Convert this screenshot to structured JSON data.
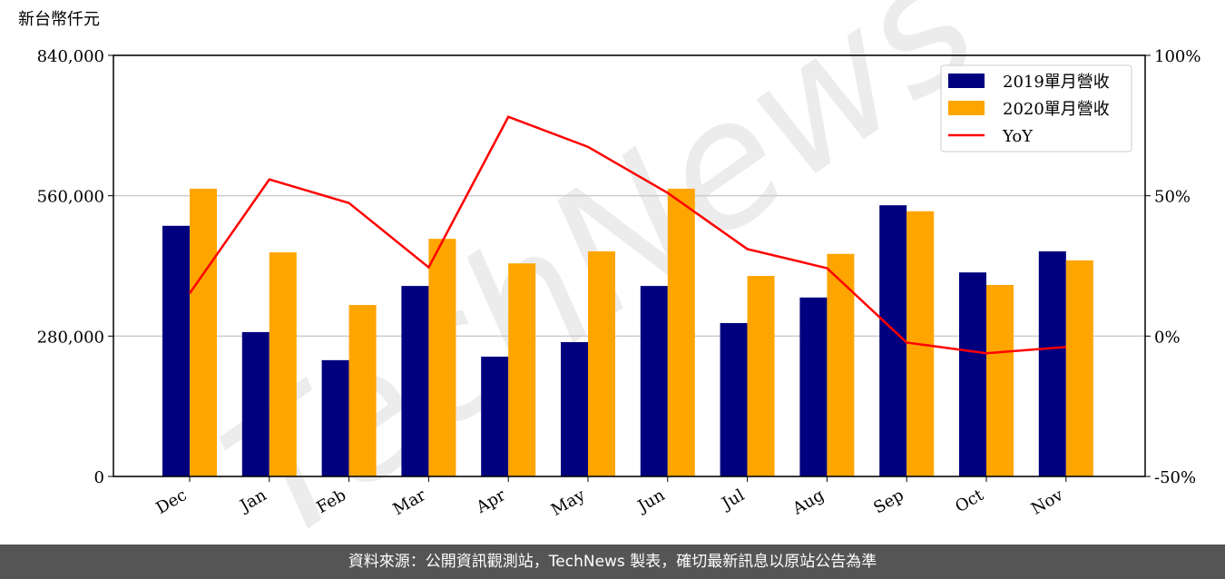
{
  "chart_data": {
    "type": "bar",
    "unit_label": "新台幣仟元",
    "watermark": "TechNews",
    "categories": [
      "Dec",
      "Jan",
      "Feb",
      "Mar",
      "Apr",
      "May",
      "Jun",
      "Jul",
      "Aug",
      "Sep",
      "Oct",
      "Nov"
    ],
    "series": [
      {
        "name": "2019單月營收",
        "type": "bar",
        "color": "#00007f",
        "values": [
          500000,
          288000,
          232000,
          380000,
          239000,
          268000,
          380000,
          306000,
          357000,
          541000,
          407000,
          449000
        ]
      },
      {
        "name": "2020單月營收",
        "type": "bar",
        "color": "#ffa500",
        "values": [
          574000,
          447000,
          342000,
          474000,
          425000,
          449000,
          574000,
          400000,
          444000,
          529000,
          382000,
          431000
        ]
      },
      {
        "name": "YoY",
        "type": "line",
        "axis": "y2",
        "color": "#ff0000",
        "values": [
          15.2,
          55.8,
          47.4,
          24.5,
          78.1,
          67.4,
          51.0,
          31.0,
          24.2,
          -2.3,
          -6.1,
          -3.9
        ]
      }
    ],
    "ylim": [
      0,
      840000
    ],
    "yticks": [
      {
        "value": 0,
        "label": "0"
      },
      {
        "value": 280000,
        "label": "280,000"
      },
      {
        "value": 560000,
        "label": "560,000"
      },
      {
        "value": 840000,
        "label": "840,000"
      }
    ],
    "y2lim": [
      -50,
      100
    ],
    "y2ticks": [
      {
        "value": -50,
        "label": "-50%"
      },
      {
        "value": 0,
        "label": "0%"
      },
      {
        "value": 50,
        "label": "50%"
      },
      {
        "value": 100,
        "label": "100%"
      }
    ],
    "grid": true,
    "legend": "upper right",
    "footer": "資料來源：公開資訊觀測站，TechNews 製表，確切最新訊息以原站公告為準"
  }
}
